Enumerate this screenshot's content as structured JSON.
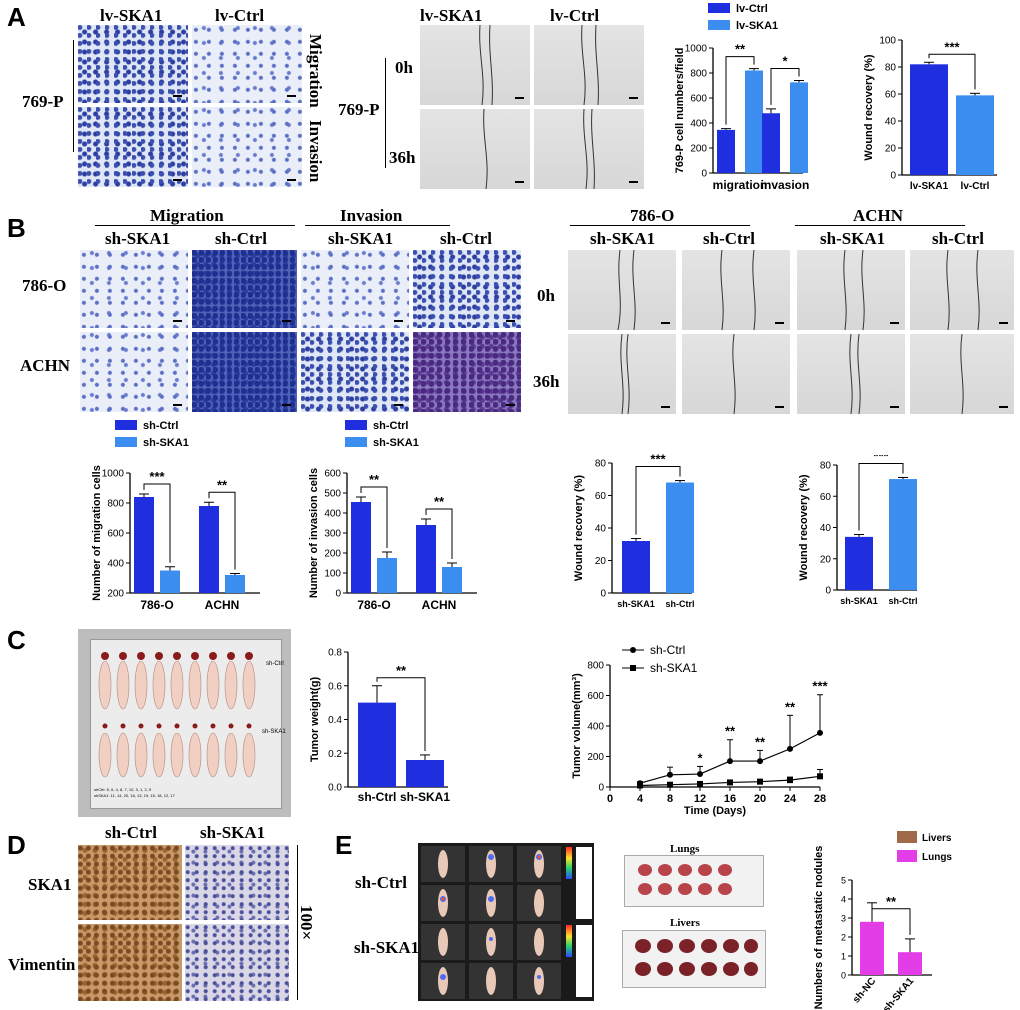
{
  "panels": {
    "a": "A",
    "b": "B",
    "c": "C",
    "d": "D",
    "e": "E"
  },
  "A": {
    "lv_ska1": "lv-SKA1",
    "lv_ctrl": "lv-Ctrl",
    "cell_line": "769-P",
    "migration": "Migration",
    "invasion": "Invasion",
    "t0": "0h",
    "t36": "36h"
  },
  "B": {
    "migration": "Migration",
    "invasion": "Invasion",
    "sh_ska1": "sh-SKA1",
    "sh_ctrl": "sh-Ctrl",
    "cell_786": "786-O",
    "cell_achn": "ACHN",
    "t0": "0h",
    "t36": "36h"
  },
  "C": {
    "tray_ctrl": "sh-Ctrl",
    "tray_ska1": "sh-SKA1",
    "tray_note_ctrl": "shCtrl: 5, 6, 4, 8, 7, 10, 3, 1, 2, 9",
    "tray_note_ska1": "shSKA1: 11, 14, 20, 16, 13, 19, 15, 18, 12, 17"
  },
  "D": {
    "sh_ctrl": "sh-Ctrl",
    "sh_ska1": "sh-SKA1",
    "ska1": "SKA1",
    "vimentin": "Vimentin",
    "mag": "100×"
  },
  "E": {
    "sh_ctrl": "sh-Ctrl",
    "sh_ska1": "sh-SKA1",
    "lungs": "Lungs",
    "livers": "Livers"
  },
  "colors": {
    "dark_blue": "#1f2fe0",
    "light_blue": "#3b8ef0",
    "magenta": "#e33de8",
    "brown": "#a0694a"
  },
  "chart_data": [
    {
      "id": "A1",
      "type": "bar",
      "categories": [
        "migration",
        "invasion"
      ],
      "series": [
        {
          "name": "lv-Ctrl",
          "values": [
            345,
            478
          ],
          "errors": [
            10,
            35
          ]
        },
        {
          "name": "lv-SKA1",
          "values": [
            820,
            725
          ],
          "errors": [
            15,
            15
          ]
        }
      ],
      "ylabel": "769-P cell numbers/field",
      "ylim": [
        0,
        1000
      ],
      "yticks": [
        0,
        200,
        400,
        600,
        800,
        1000
      ],
      "sig": [
        "**",
        "*"
      ],
      "legend": [
        "lv-Ctrl",
        "lv-SKA1"
      ]
    },
    {
      "id": "A2",
      "type": "bar",
      "categories": [
        "lv-SKA1",
        "lv-Ctrl"
      ],
      "values": [
        82,
        59
      ],
      "errors": [
        1.5,
        1.5
      ],
      "ylabel": "Wound recovery (%)",
      "ylim": [
        0,
        100
      ],
      "yticks": [
        0,
        20,
        40,
        60,
        80,
        100
      ],
      "sig": "***"
    },
    {
      "id": "B1",
      "type": "bar",
      "categories": [
        "786-O",
        "ACHN"
      ],
      "series": [
        {
          "name": "sh-Ctrl",
          "values": [
            840,
            780
          ],
          "errors": [
            20,
            25
          ]
        },
        {
          "name": "sh-SKA1",
          "values": [
            350,
            320
          ],
          "errors": [
            25,
            10
          ]
        }
      ],
      "ylabel": "Number of migration cells",
      "ylim": [
        200,
        1000
      ],
      "yticks": [
        200,
        400,
        600,
        800,
        1000
      ],
      "sig": [
        "***",
        "**"
      ],
      "legend": [
        "sh-Ctrl",
        "sh-SKA1"
      ]
    },
    {
      "id": "B2",
      "type": "bar",
      "categories": [
        "786-O",
        "ACHN"
      ],
      "series": [
        {
          "name": "sh-Ctrl",
          "values": [
            455,
            340
          ],
          "errors": [
            25,
            30
          ]
        },
        {
          "name": "sh-SKA1",
          "values": [
            175,
            130
          ],
          "errors": [
            30,
            20
          ]
        }
      ],
      "ylabel": "Number of invasion cells",
      "ylim": [
        0,
        600
      ],
      "yticks": [
        0,
        100,
        200,
        300,
        400,
        500,
        600
      ],
      "sig": [
        "**",
        "**"
      ],
      "legend": [
        "sh-Ctrl",
        "sh-SKA1"
      ]
    },
    {
      "id": "B3",
      "type": "bar",
      "categories": [
        "sh-SKA1",
        "sh-Ctrl"
      ],
      "values": [
        32,
        68
      ],
      "errors": [
        1.5,
        1.2
      ],
      "ylabel": "Wound recovery (%)",
      "ylim": [
        0,
        80
      ],
      "yticks": [
        0,
        20,
        40,
        60,
        80
      ],
      "sig": "***"
    },
    {
      "id": "B4",
      "type": "bar",
      "categories": [
        "sh-SKA1",
        "sh-Ctrl"
      ],
      "values": [
        34,
        71
      ],
      "errors": [
        1.5,
        1.0
      ],
      "ylabel": "Wound recovery (%)",
      "ylim": [
        0,
        80
      ],
      "yticks": [
        0,
        20,
        40,
        60,
        80
      ],
      "sig": "***"
    },
    {
      "id": "C1",
      "type": "bar",
      "categories": [
        "sh-Ctrl",
        "sh-SKA1"
      ],
      "values": [
        0.5,
        0.16
      ],
      "errors": [
        0.1,
        0.03
      ],
      "ylabel": "Tumor weight(g)",
      "ylim": [
        0,
        0.8
      ],
      "yticks": [
        "0.0",
        "0.2",
        "0.4",
        "0.6",
        "0.8"
      ],
      "sig": "**"
    },
    {
      "id": "C2",
      "type": "line",
      "x": [
        4,
        8,
        12,
        16,
        20,
        24,
        28
      ],
      "series": [
        {
          "name": "sh-Ctrl",
          "values": [
            25,
            80,
            85,
            170,
            170,
            250,
            355
          ],
          "errors": [
            10,
            50,
            50,
            140,
            70,
            220,
            250
          ]
        },
        {
          "name": "sh-SKA1",
          "values": [
            10,
            15,
            20,
            30,
            35,
            45,
            70
          ],
          "errors": [
            5,
            10,
            10,
            15,
            15,
            20,
            45
          ]
        }
      ],
      "xlabel": "Time (Days)",
      "ylabel": "Tumor volume(mm³)",
      "ylim": [
        0,
        800
      ],
      "yticks": [
        0,
        200,
        400,
        600,
        800
      ],
      "xticks": [
        0,
        4,
        8,
        12,
        16,
        20,
        24,
        28
      ],
      "sig": [
        "",
        "",
        "*",
        "**",
        "**",
        "**",
        "***"
      ]
    },
    {
      "id": "E1",
      "type": "bar",
      "categories": [
        "sh-NC",
        "sh-SKA1"
      ],
      "values": [
        2.8,
        1.2
      ],
      "errors": [
        1.0,
        0.7
      ],
      "ylabel": "Numbers of metastatic nodules",
      "ylim": [
        0,
        5
      ],
      "yticks": [
        0,
        1,
        2,
        3,
        4,
        5
      ],
      "sig": "**",
      "legend": [
        "Livers",
        "Lungs"
      ]
    }
  ]
}
